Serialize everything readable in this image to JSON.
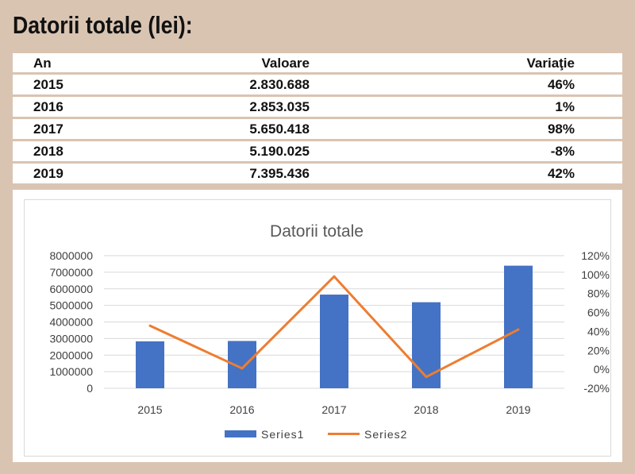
{
  "page_title": "Datorii totale (lei):",
  "table": {
    "headers": [
      "An",
      "Valoare",
      "Variaţie"
    ],
    "rows": [
      [
        "2015",
        "2.830.688",
        "46%"
      ],
      [
        "2016",
        "2.853.035",
        "1%"
      ],
      [
        "2017",
        "5.650.418",
        "98%"
      ],
      [
        "2018",
        "5.190.025",
        "-8%"
      ],
      [
        "2019",
        "7.395.436",
        "42%"
      ]
    ]
  },
  "chart_data": {
    "type": "bar",
    "title": "Datorii totale",
    "categories": [
      "2015",
      "2016",
      "2017",
      "2018",
      "2019"
    ],
    "series": [
      {
        "name": "Series1",
        "type": "bar",
        "axis": "left",
        "color": "#4472c4",
        "values": [
          2830688,
          2853035,
          5650418,
          5190025,
          7395436
        ]
      },
      {
        "name": "Series2",
        "type": "line",
        "axis": "right",
        "color": "#ed7d31",
        "values": [
          46,
          1,
          98,
          -8,
          42
        ]
      }
    ],
    "ylim_left": [
      0,
      8000000
    ],
    "yticks_left": [
      "8000000",
      "7000000",
      "6000000",
      "5000000",
      "4000000",
      "3000000",
      "2000000",
      "1000000",
      "0"
    ],
    "ylim_right": [
      -20,
      120
    ],
    "yticks_right": [
      "120%",
      "100%",
      "80%",
      "60%",
      "40%",
      "20%",
      "0%",
      "-20%"
    ],
    "legend_position": "bottom",
    "grid": true
  }
}
